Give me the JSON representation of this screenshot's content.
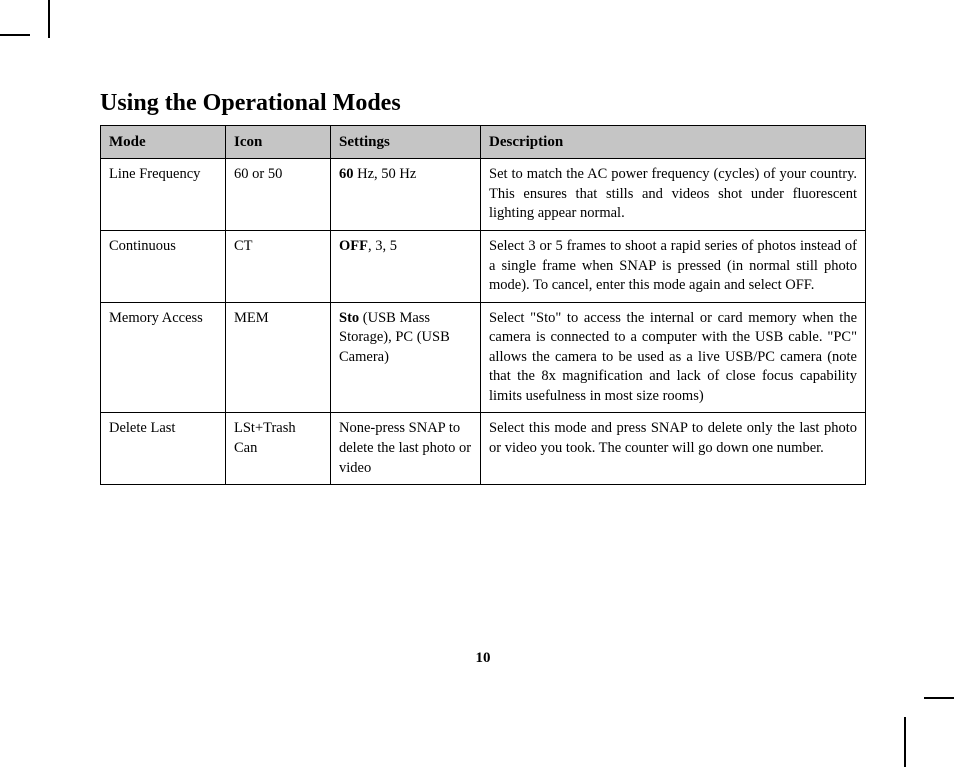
{
  "section_title": "Using the Operational Modes",
  "page_number": "10",
  "table": {
    "headers": {
      "mode": "Mode",
      "icon": "Icon",
      "settings": "Settings",
      "description": "Description"
    },
    "rows": [
      {
        "mode": "Line Frequency",
        "icon": "60 or 50",
        "settings_bold": "60",
        "settings_rest": " Hz, 50 Hz",
        "description": "Set to match the AC power frequency (cycles) of your country. This ensures that stills and videos shot under fluorescent lighting appear normal."
      },
      {
        "mode": "Continuous",
        "icon": "CT",
        "settings_bold": "OFF",
        "settings_rest": ", 3, 5",
        "description": "Select 3 or 5 frames to shoot a rapid series of photos instead of a single frame when SNAP is pressed (in normal still photo mode). To cancel, enter this mode again and select OFF."
      },
      {
        "mode": "Memory Access",
        "icon": "MEM",
        "settings_bold": "Sto",
        "settings_rest": " (USB Mass Storage), PC (USB Camera)",
        "description": "Select \"Sto\" to access the internal or card memory when the camera is connected to a computer with the USB cable. \"PC\" allows the camera to be used as a live USB/PC camera (note that the 8x magnification and lack of close focus capability limits usefulness in most size rooms)"
      },
      {
        "mode": "Delete Last",
        "icon": "LSt+Trash Can",
        "settings_bold": "",
        "settings_rest": "None-press SNAP to delete the last photo or video",
        "description": "Select this mode and press SNAP to delete only the last photo or video you took. The counter will go down one number."
      }
    ]
  }
}
